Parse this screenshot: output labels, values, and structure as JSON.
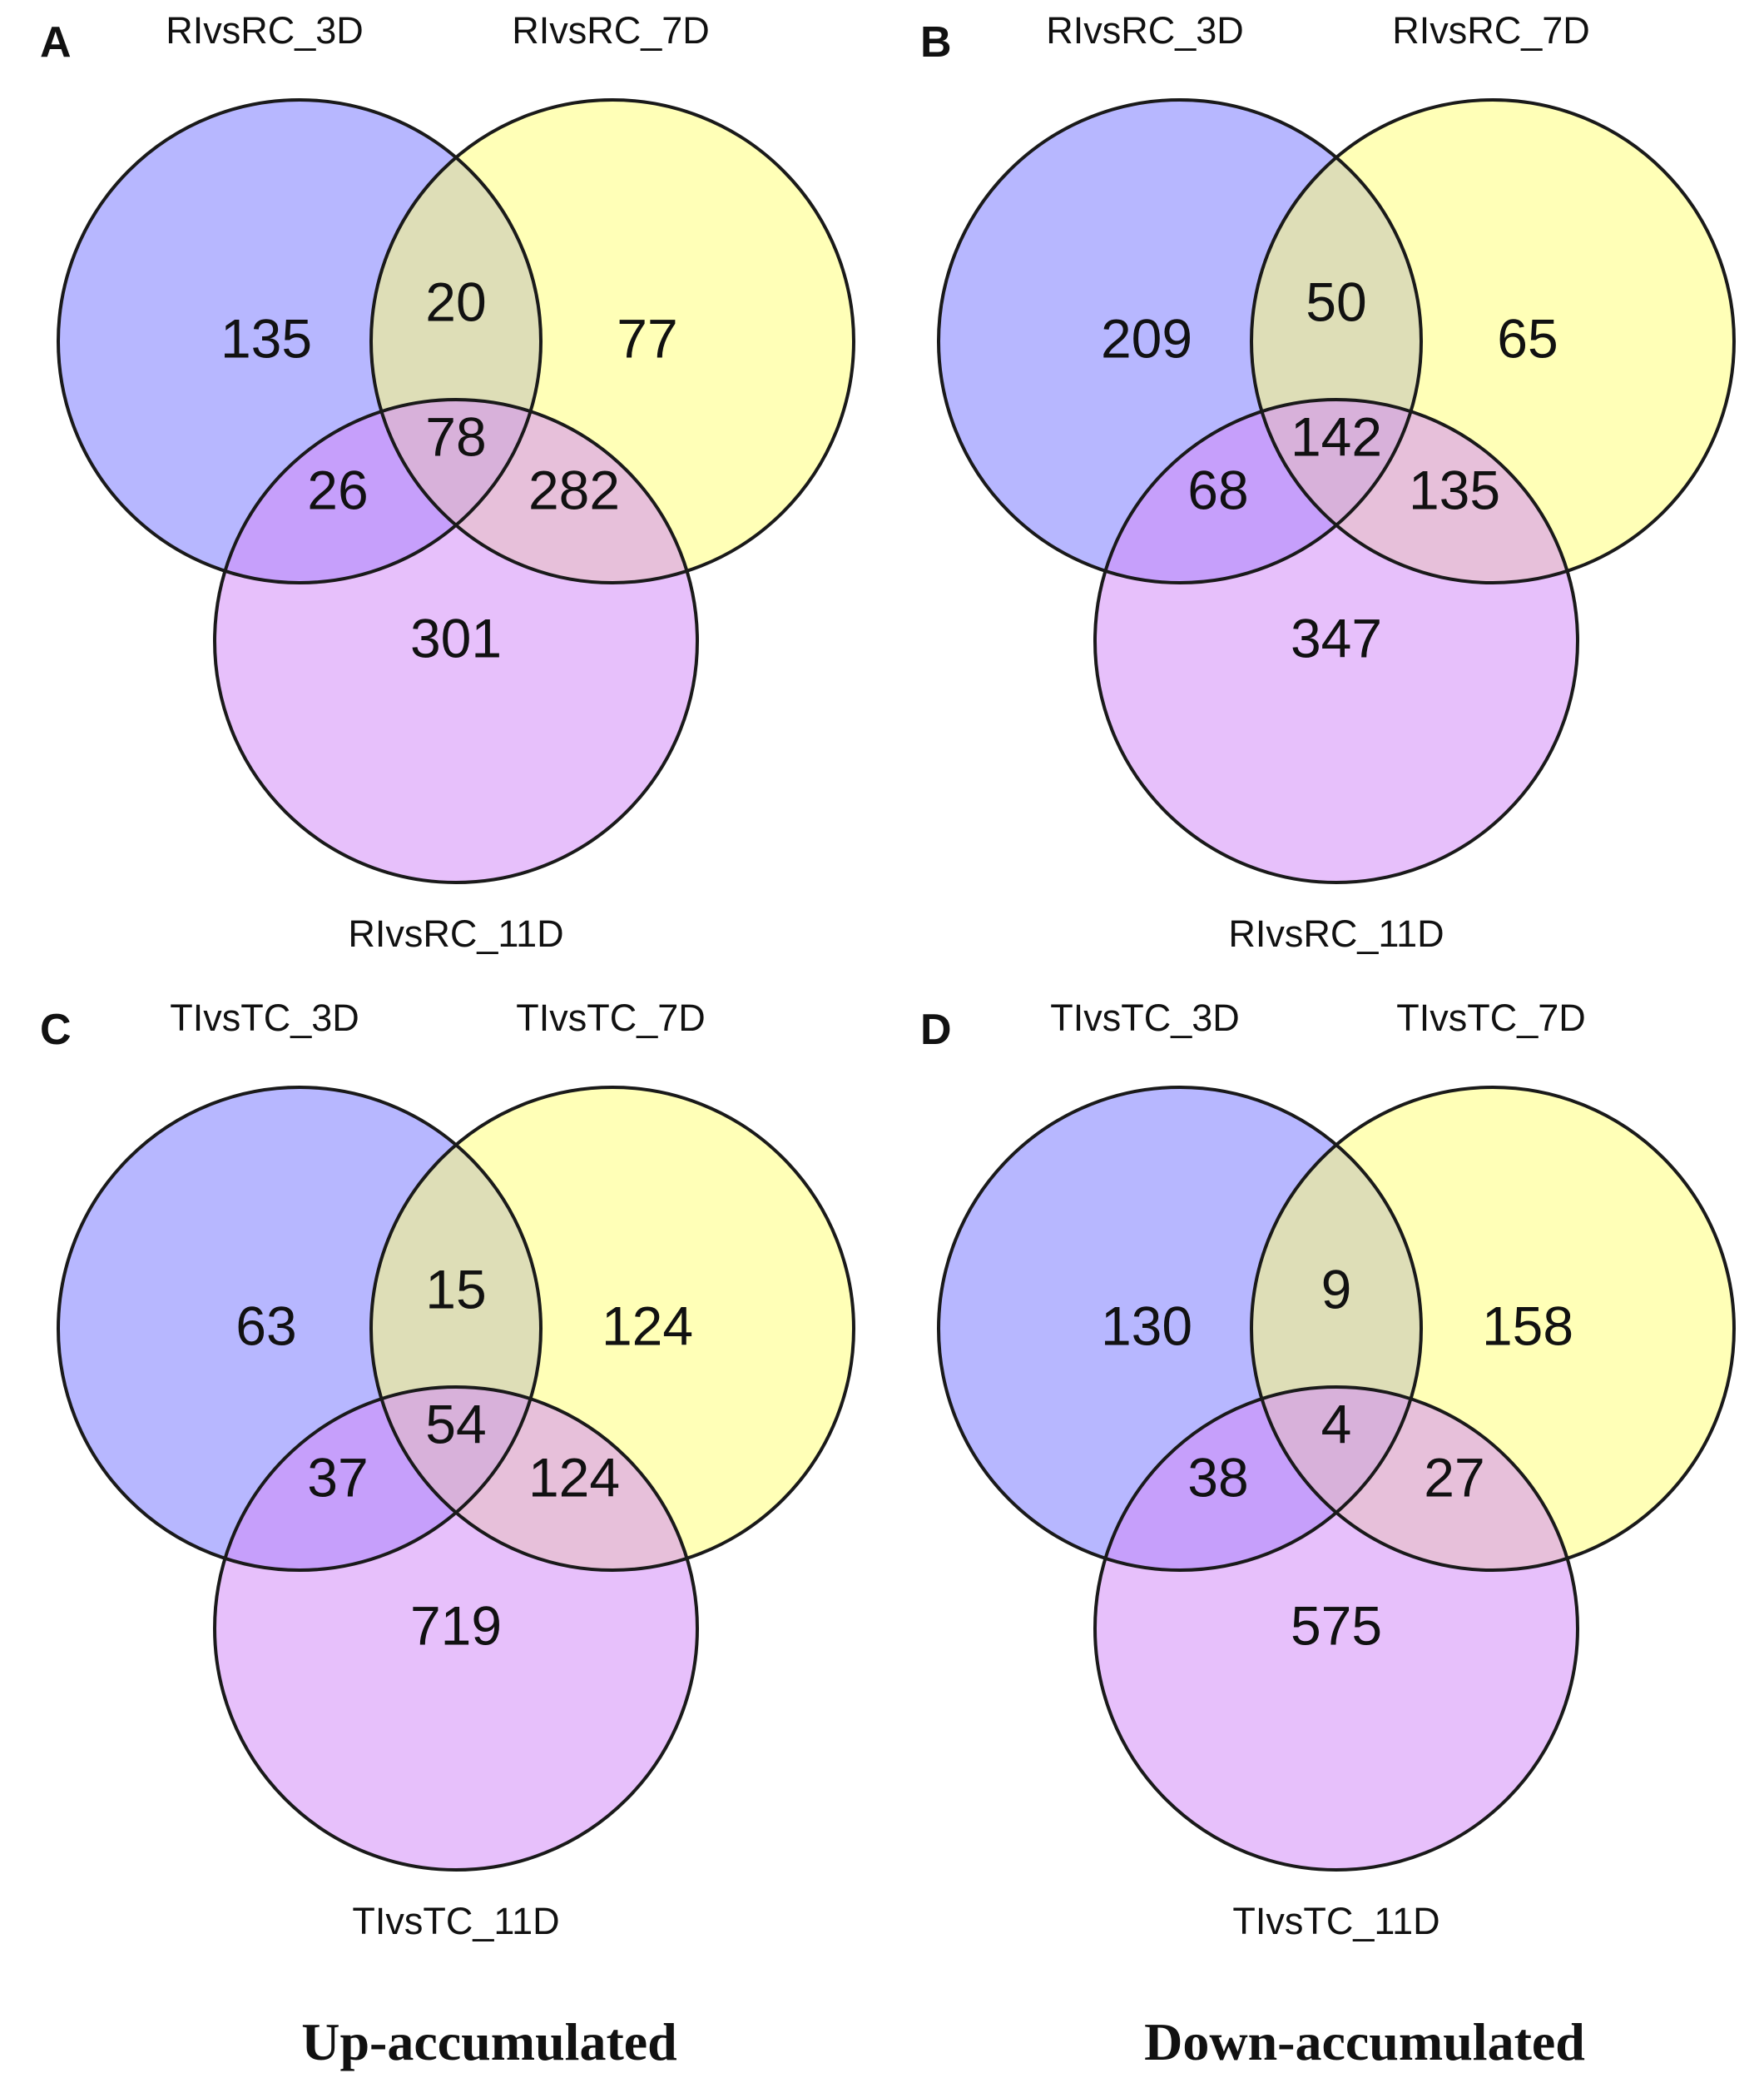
{
  "colors": {
    "set1": "#7b7bff",
    "set2": "#ffff7b",
    "set3": "#d48cf8",
    "outline": "#1a1a1a"
  },
  "chart_data": [
    {
      "type": "venn",
      "panel": "A",
      "sets": [
        "RIvsRC_3D",
        "RIvsRC_7D",
        "RIvsRC_11D"
      ],
      "regions": {
        "only_1": 135,
        "only_2": 77,
        "only_3": 301,
        "s12": 20,
        "s13": 26,
        "s23": 282,
        "s123": 78
      }
    },
    {
      "type": "venn",
      "panel": "B",
      "sets": [
        "RIvsRC_3D",
        "RIvsRC_7D",
        "RIvsRC_11D"
      ],
      "regions": {
        "only_1": 209,
        "only_2": 65,
        "only_3": 347,
        "s12": 50,
        "s13": 68,
        "s23": 135,
        "s123": 142
      }
    },
    {
      "type": "venn",
      "panel": "C",
      "sets": [
        "TIvsTC_3D",
        "TIvsTC_7D",
        "TIvsTC_11D"
      ],
      "regions": {
        "only_1": 63,
        "only_2": 124,
        "only_3": 719,
        "s12": 15,
        "s13": 37,
        "s23": 124,
        "s123": 54
      }
    },
    {
      "type": "venn",
      "panel": "D",
      "sets": [
        "TIvsTC_3D",
        "TIvsTC_7D",
        "TIvsTC_11D"
      ],
      "regions": {
        "only_1": 130,
        "only_2": 158,
        "only_3": 575,
        "s12": 9,
        "s13": 38,
        "s23": 27,
        "s123": 4
      }
    }
  ],
  "footer": {
    "left": "Up-accumulated",
    "right": "Down-accumulated"
  }
}
